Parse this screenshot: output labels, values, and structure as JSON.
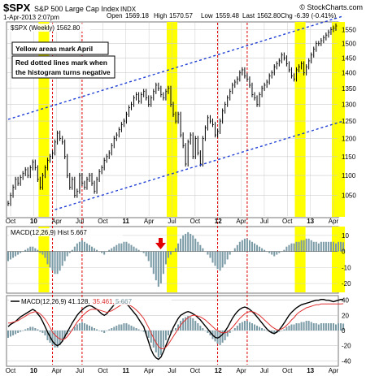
{
  "header": {
    "symbol": "$SPX",
    "name": "S&P 500 Large Cap Index",
    "exchange": "INDX",
    "source": "© StockCharts.com",
    "date": "1-Apr-2013 2:07pm",
    "ohlc": {
      "open_label": "Open",
      "open": "1569.18",
      "high_label": "High",
      "high": "1570.57",
      "low_label": "Low",
      "low": "1559.48",
      "last_label": "Last",
      "last": "1562.80",
      "chg_label": "Chg",
      "chg": "-6.39 (-0.41%)"
    }
  },
  "annotations": {
    "yellow_note": "Yellow areas mark April",
    "red_note_line1": "Red dotted lines mark when",
    "red_note_line2": "the histogram turns negative"
  },
  "colors": {
    "price_bars": "#000000",
    "april_highlight": "#ffff00",
    "channel_lines": "#1f3fd6",
    "histogram_negative_marker": "#e00000",
    "histogram_bars": "#7a9aa6",
    "macd_line": "#000000",
    "signal_line": "#e03030",
    "grid": "#cccccc"
  },
  "chart_data": [
    {
      "type": "line",
      "panel": "price",
      "legend_label": "$SPX (Weekly) 1562.80",
      "x_ticks": [
        "Oct",
        "10",
        "Apr",
        "Jul",
        "Oct",
        "11",
        "Apr",
        "Jul",
        "Oct",
        "12",
        "Apr",
        "Jul",
        "Oct",
        "13",
        "Apr"
      ],
      "y_ticks": [
        1050,
        1100,
        1150,
        1200,
        1250,
        1300,
        1350,
        1400,
        1450,
        1500,
        1550
      ],
      "ylim": [
        1000,
        1575
      ],
      "scale": "log",
      "grid": true,
      "series": [
        {
          "values": [
            1030,
            1050,
            1070,
            1090,
            1080,
            1095,
            1105,
            1115,
            1100,
            1120,
            1135,
            1120,
            1090,
            1070,
            1100,
            1120,
            1140,
            1150,
            1160,
            1190,
            1215,
            1200,
            1190,
            1150,
            1100,
            1070,
            1090,
            1050,
            1060,
            1100,
            1080,
            1070,
            1090,
            1100,
            1080,
            1060,
            1090,
            1110,
            1120,
            1140,
            1150,
            1160,
            1180,
            1200,
            1210,
            1225,
            1240,
            1250,
            1270,
            1290,
            1300,
            1320,
            1330,
            1310,
            1330,
            1340,
            1320,
            1300,
            1320,
            1340,
            1360,
            1350,
            1330,
            1320,
            1340,
            1350,
            1300,
            1270,
            1250,
            1270,
            1210,
            1180,
            1130,
            1190,
            1210,
            1150,
            1200,
            1160,
            1130,
            1200,
            1230,
            1260,
            1250,
            1240,
            1210,
            1220,
            1250,
            1280,
            1300,
            1320,
            1340,
            1360,
            1370,
            1380,
            1400,
            1410,
            1390,
            1380,
            1360,
            1330,
            1320,
            1300,
            1330,
            1350,
            1360,
            1370,
            1390,
            1400,
            1420,
            1430,
            1440,
            1460,
            1450,
            1430,
            1410,
            1390,
            1380,
            1410,
            1420,
            1430,
            1400,
            1420,
            1440,
            1460,
            1480,
            1500,
            1500,
            1510,
            1520,
            1530,
            1540,
            1550,
            1555,
            1563
          ]
        }
      ],
      "channel": {
        "upper": {
          "from": [
            0,
            1255
          ],
          "to": [
            136,
            1600
          ]
        },
        "lower": {
          "from": [
            19,
            1015
          ],
          "to": [
            136,
            1250
          ]
        }
      },
      "april_highlights": [
        [
          13,
          16
        ],
        [
          65,
          68
        ],
        [
          117,
          120
        ],
        [
          132,
          136
        ]
      ],
      "negative_markers": [
        [
          18,
          30
        ],
        [
          85,
          97
        ]
      ]
    },
    {
      "type": "bar",
      "panel": "histogram",
      "legend_label": "MACD(12,26,9) Hist 5.667",
      "y_ticks": [
        -20,
        -10,
        0,
        10
      ],
      "ylim": [
        -25,
        15
      ],
      "values": [
        -6,
        -5,
        -4,
        -3,
        -2,
        -1,
        0,
        1,
        2,
        3,
        3,
        2,
        1,
        -1,
        -2,
        -4,
        -8,
        -10,
        -12,
        -14,
        -14,
        -12,
        -9,
        -6,
        -3,
        -1,
        1,
        3,
        5,
        6,
        7,
        6,
        5,
        4,
        3,
        2,
        1,
        0,
        -1,
        -2,
        0,
        1,
        2,
        3,
        4,
        5,
        5,
        6,
        6,
        5,
        4,
        3,
        2,
        1,
        0,
        -1,
        -3,
        -6,
        -10,
        -14,
        -18,
        -22,
        -20,
        -14,
        -8,
        -4,
        -2,
        0,
        2,
        5,
        8,
        10,
        11,
        12,
        11,
        10,
        8,
        6,
        4,
        2,
        0,
        -2,
        -4,
        -7,
        -9,
        -11,
        -12,
        -10,
        -8,
        -5,
        -2,
        0,
        2,
        4,
        6,
        7,
        8,
        8,
        7,
        6,
        5,
        4,
        3,
        2,
        1,
        0,
        -1,
        -2,
        -3,
        -2,
        -1,
        0,
        1,
        3,
        4,
        5,
        5,
        6,
        6,
        7,
        7,
        8,
        8,
        7,
        6,
        6,
        5,
        6,
        6,
        6,
        6,
        6,
        6,
        5,
        6,
        6,
        5.7
      ]
    },
    {
      "type": "line",
      "panel": "macd",
      "legend": [
        {
          "label": "MACD(12,26,9) 41.128,",
          "color_key": "macd_line"
        },
        {
          "label": "35.461,",
          "color_key": "signal_line"
        },
        {
          "label": "5.667",
          "color_key": "histogram_bars"
        }
      ],
      "y_ticks": [
        -40,
        -20,
        0,
        20,
        40
      ],
      "ylim": [
        -45,
        45
      ],
      "series": [
        {
          "name": "MACD",
          "values": [
            5,
            8,
            10,
            12,
            15,
            18,
            20,
            22,
            24,
            26,
            28,
            26,
            22,
            18,
            12,
            5,
            -2,
            -8,
            -14,
            -18,
            -20,
            -18,
            -14,
            -8,
            -2,
            4,
            10,
            15,
            20,
            24,
            27,
            30,
            32,
            33,
            32,
            30,
            28,
            25,
            22,
            20,
            22,
            26,
            30,
            34,
            36,
            38,
            38,
            37,
            35,
            32,
            28,
            24,
            20,
            15,
            10,
            5,
            -5,
            -15,
            -25,
            -32,
            -36,
            -38,
            -35,
            -28,
            -20,
            -12,
            -4,
            4,
            10,
            16,
            20,
            22,
            24,
            25,
            24,
            22,
            20,
            17,
            14,
            10,
            6,
            2,
            -2,
            -6,
            -9,
            -10,
            -8,
            -5,
            -1,
            4,
            10,
            16,
            21,
            25,
            28,
            30,
            31,
            30,
            28,
            25,
            22,
            18,
            14,
            10,
            6,
            2,
            -1,
            -3,
            -4,
            -2,
            1,
            5,
            10,
            15,
            20,
            24,
            27,
            30,
            32,
            34,
            35,
            36,
            37,
            38,
            39,
            40,
            40,
            41,
            41,
            40,
            40,
            39,
            38,
            39,
            40,
            41,
            41.1
          ]
        },
        {
          "name": "Signal",
          "values": [
            10,
            10,
            11,
            12,
            13,
            15,
            17,
            19,
            21,
            23,
            24,
            25,
            24,
            22,
            19,
            15,
            10,
            4,
            -2,
            -6,
            -9,
            -11,
            -12,
            -11,
            -8,
            -4,
            1,
            6,
            11,
            15,
            19,
            22,
            25,
            27,
            28,
            28,
            28,
            27,
            26,
            25,
            24,
            25,
            26,
            28,
            30,
            32,
            34,
            35,
            35,
            34,
            32,
            30,
            27,
            24,
            20,
            16,
            10,
            4,
            -3,
            -10,
            -16,
            -21,
            -24,
            -24,
            -22,
            -18,
            -13,
            -8,
            -3,
            2,
            7,
            11,
            14,
            17,
            19,
            20,
            20,
            19,
            18,
            16,
            14,
            11,
            8,
            5,
            2,
            0,
            -2,
            -3,
            -3,
            -2,
            1,
            4,
            8,
            12,
            16,
            19,
            22,
            24,
            25,
            25,
            24,
            22,
            20,
            17,
            14,
            11,
            8,
            5,
            3,
            1,
            1,
            2,
            4,
            7,
            10,
            14,
            17,
            21,
            24,
            26,
            28,
            30,
            31,
            32,
            33,
            34,
            34,
            35,
            35,
            35,
            35,
            35,
            35,
            35,
            35,
            35,
            35.5
          ]
        }
      ],
      "histogram_values_from": "histogram"
    }
  ]
}
